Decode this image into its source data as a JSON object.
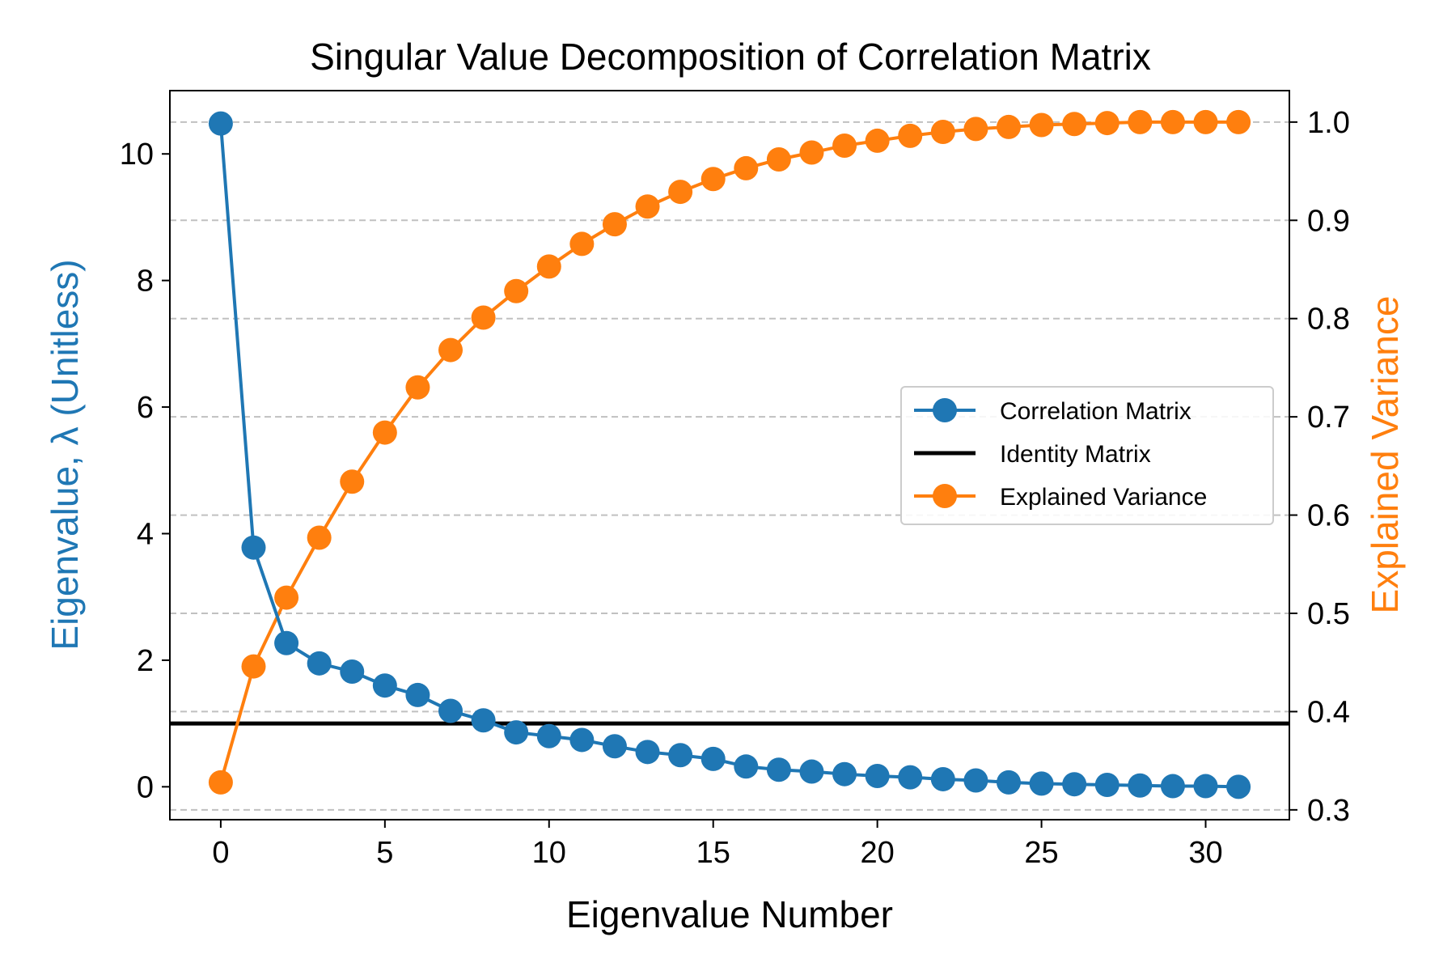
{
  "chart_data": {
    "type": "line",
    "title": "Singular Value Decomposition of Correlation Matrix",
    "xlabel": "Eigenvalue Number",
    "ylabel_left": "Eigenvalue, λ (Unitless)",
    "ylabel_right": "Explained Variance",
    "xlim": [
      -1.55,
      32.55
    ],
    "ylim_left": [
      -0.52,
      11.0
    ],
    "ylim_right": [
      0.29,
      1.032
    ],
    "x_ticks": [
      0,
      5,
      10,
      15,
      20,
      25,
      30
    ],
    "y_ticks_left": [
      0,
      2,
      4,
      6,
      8,
      10
    ],
    "y_ticks_right": [
      0.3,
      0.4,
      0.5,
      0.6,
      0.7,
      0.8,
      0.9,
      1.0
    ],
    "x_tick_labels": [
      "0",
      "5",
      "10",
      "15",
      "20",
      "25",
      "30"
    ],
    "y_tick_labels_left": [
      "0",
      "2",
      "4",
      "6",
      "8",
      "10"
    ],
    "y_tick_labels_right": [
      "0.3",
      "0.4",
      "0.5",
      "0.6",
      "0.7",
      "0.8",
      "0.9",
      "1.0"
    ],
    "grid": "horizontal dashed, right axis ticks",
    "legend_placement": "center-right",
    "x": [
      0,
      1,
      2,
      3,
      4,
      5,
      6,
      7,
      8,
      9,
      10,
      11,
      12,
      13,
      14,
      15,
      16,
      17,
      18,
      19,
      20,
      21,
      22,
      23,
      24,
      25,
      26,
      27,
      28,
      29,
      30,
      31
    ],
    "series": [
      {
        "name": "Correlation Matrix",
        "axis": "left",
        "color": "#1f77b4",
        "marker": "circle",
        "values": [
          10.48,
          3.78,
          2.27,
          1.95,
          1.82,
          1.6,
          1.45,
          1.2,
          1.05,
          0.86,
          0.8,
          0.74,
          0.64,
          0.55,
          0.5,
          0.44,
          0.32,
          0.27,
          0.24,
          0.2,
          0.17,
          0.15,
          0.12,
          0.1,
          0.07,
          0.05,
          0.04,
          0.03,
          0.02,
          0.01,
          0.01,
          0.0
        ]
      },
      {
        "name": "Identity Matrix",
        "axis": "left",
        "color": "#000000",
        "marker": "none",
        "constant": 1.0
      },
      {
        "name": "Explained Variance",
        "axis": "right",
        "color": "#ff7f0e",
        "marker": "circle",
        "values": [
          0.328,
          0.446,
          0.516,
          0.577,
          0.634,
          0.684,
          0.73,
          0.768,
          0.801,
          0.828,
          0.853,
          0.876,
          0.896,
          0.914,
          0.929,
          0.942,
          0.953,
          0.962,
          0.969,
          0.976,
          0.981,
          0.986,
          0.99,
          0.993,
          0.995,
          0.997,
          0.998,
          0.999,
          1.0,
          1.0,
          1.0,
          1.0
        ]
      }
    ]
  }
}
